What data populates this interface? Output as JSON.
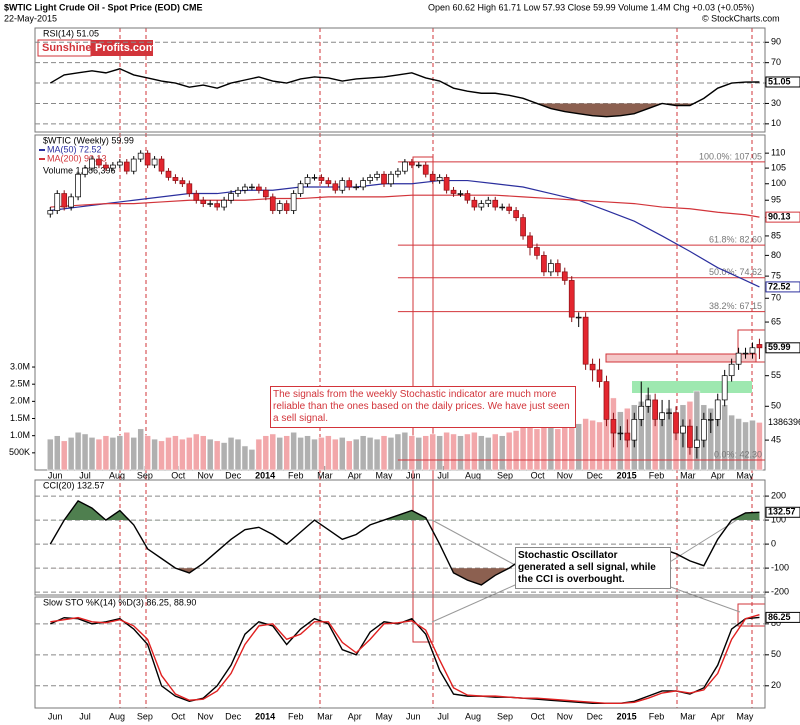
{
  "header": {
    "title": "$WTIC Light Crude Oil - Spot Price (EOD) CME",
    "date": "22-May-2015",
    "quote": "Open 60.62 High 61.71 Low 57.93 Close 59.99 Volume 1.4M Chg +0.03 (+0.05%)",
    "credit": "© StockCharts.com",
    "logo_1": "Sunshine",
    "logo_2": "Profits.com"
  },
  "annotations": {
    "signal_box": "The signals from the weekly Stochastic indicator are much more reliable than the ones based on the daily prices. We have just seen a sell signal.",
    "callout": "Stochastic Oscillator generated a sell signal, while the CCI is overbought."
  },
  "chart_data": [
    {
      "type": "line",
      "legend": "RSI(14) 51.05",
      "xlim": [
        -2.2,
        102.8
      ],
      "ylim": [
        2,
        104
      ],
      "yticks": [
        10,
        30,
        50,
        70,
        90
      ],
      "grid": true,
      "x": [
        0,
        2,
        4,
        6,
        8,
        10,
        12,
        14,
        16,
        18,
        20,
        22,
        24,
        26,
        28,
        30,
        32,
        34,
        36,
        38,
        40,
        42,
        44,
        46,
        48,
        50,
        52,
        54,
        56,
        58,
        60,
        62,
        64,
        66,
        68,
        70,
        72,
        74,
        76,
        78,
        80,
        82,
        84,
        86,
        88,
        90,
        92,
        94,
        96,
        98,
        100,
        102
      ],
      "series": [
        {
          "color": "#000000",
          "values": [
            50,
            58,
            60,
            62,
            60,
            64,
            58,
            55,
            52,
            50,
            46,
            48,
            45,
            50,
            53,
            56,
            52,
            50,
            54,
            56,
            55,
            52,
            54,
            55,
            56,
            58,
            60,
            55,
            52,
            45,
            42,
            40,
            40,
            38,
            35,
            30,
            25,
            22,
            20,
            18,
            17,
            18,
            20,
            25,
            30,
            28,
            28,
            35,
            45,
            50,
            51,
            51.05
          ],
          "last_label": "51.05"
        }
      ],
      "fills": [
        {
          "below": 30,
          "color": "#8c6050"
        }
      ]
    },
    {
      "type": "candlestick",
      "legend": "$WTIC (Weekly) 59.99",
      "log": true,
      "xlim": [
        -2.2,
        102.8
      ],
      "ylim": [
        41,
        116.4
      ],
      "yticks": [
        45,
        50,
        55,
        60,
        65,
        70,
        75,
        80,
        85,
        90,
        95,
        100,
        105,
        110
      ],
      "xticks": [
        {
          "value": 0.7,
          "label": "Jun"
        },
        {
          "value": 5,
          "label": "Jul"
        },
        {
          "value": 9.6,
          "label": "Aug"
        },
        {
          "value": 13.6,
          "label": "Sep"
        },
        {
          "value": 18.4,
          "label": "Oct"
        },
        {
          "value": 22.3,
          "label": "Nov"
        },
        {
          "value": 26.3,
          "label": "Dec"
        },
        {
          "value": 30.9,
          "label": "2014"
        },
        {
          "value": 35.3,
          "label": "Feb"
        },
        {
          "value": 39.5,
          "label": "Mar"
        },
        {
          "value": 43.8,
          "label": "Apr"
        },
        {
          "value": 48,
          "label": "May"
        },
        {
          "value": 52.2,
          "label": "Jun"
        },
        {
          "value": 56.5,
          "label": "Jul"
        },
        {
          "value": 60.8,
          "label": "Aug"
        },
        {
          "value": 65.4,
          "label": "Sep"
        },
        {
          "value": 70.1,
          "label": "Oct"
        },
        {
          "value": 74,
          "label": "Nov"
        },
        {
          "value": 78.3,
          "label": "Dec"
        },
        {
          "value": 82.9,
          "label": "2015"
        },
        {
          "value": 87.2,
          "label": "Feb"
        },
        {
          "value": 91.7,
          "label": "Mar"
        },
        {
          "value": 96,
          "label": "Apr"
        },
        {
          "value": 99.9,
          "label": "May"
        }
      ],
      "up_color": "#ffffff",
      "down_color": "#e3262f",
      "last_label": "59.99",
      "open": [
        91,
        92,
        97,
        93,
        96,
        103,
        105,
        108,
        106,
        105,
        106,
        107,
        104,
        108,
        110,
        106,
        108,
        104,
        102,
        101,
        100,
        97,
        95,
        94,
        94,
        93,
        95,
        97,
        98,
        99,
        99,
        98,
        96,
        92,
        94,
        92,
        97,
        100,
        102,
        102,
        101,
        100,
        98,
        101,
        99,
        99,
        101,
        102,
        103,
        100,
        103,
        104,
        107,
        106,
        106,
        103,
        101,
        102,
        98,
        97,
        97,
        95,
        93,
        94,
        95,
        93,
        93,
        92,
        90,
        85,
        82,
        80,
        76,
        78,
        76,
        74,
        66,
        66,
        57,
        56,
        54,
        48,
        46,
        46,
        45,
        48,
        50,
        51,
        48,
        49,
        49,
        46,
        47,
        44,
        45,
        48,
        48,
        51,
        55,
        57,
        59,
        59,
        60.62
      ],
      "high": [
        93,
        98,
        98,
        97,
        104,
        106,
        109,
        109,
        107,
        107,
        108,
        108,
        109,
        111,
        111,
        109,
        109,
        105,
        103,
        102,
        101,
        98,
        96,
        95,
        95,
        96,
        98,
        99,
        100,
        100,
        100,
        99,
        97,
        95,
        95,
        98,
        101,
        103,
        103,
        103,
        102,
        101,
        102,
        102,
        100,
        102,
        103,
        104,
        104,
        104,
        105,
        108,
        108,
        107,
        107,
        104,
        103,
        103,
        99,
        98,
        98,
        96,
        95,
        96,
        96,
        94,
        94,
        93,
        91,
        86,
        83,
        81,
        79,
        79,
        77,
        75,
        67,
        67,
        58,
        58,
        55,
        49,
        47,
        48,
        49,
        54,
        53,
        52,
        51,
        51,
        50,
        48,
        48,
        47,
        49,
        49,
        52,
        56,
        58,
        60,
        60,
        61,
        61.71
      ],
      "low": [
        90,
        91,
        92,
        92,
        95,
        102,
        104,
        105,
        104,
        104,
        105,
        103,
        103,
        107,
        105,
        105,
        103,
        101,
        100,
        99,
        96,
        94,
        93,
        93,
        92,
        92,
        94,
        96,
        97,
        98,
        97,
        95,
        91,
        91,
        91,
        91,
        96,
        99,
        101,
        100,
        99,
        97,
        97,
        98,
        98,
        98,
        100,
        101,
        99,
        99,
        102,
        103,
        105,
        105,
        102,
        100,
        100,
        97,
        96,
        96,
        94,
        92,
        92,
        93,
        92,
        92,
        91,
        89,
        84,
        80,
        79,
        75,
        75,
        75,
        73,
        65,
        64,
        56,
        54,
        53,
        47,
        44,
        45,
        44,
        44,
        47,
        49,
        47,
        47,
        48,
        45,
        44,
        43,
        42.5,
        44,
        46,
        47,
        50,
        54,
        56,
        58,
        58,
        57.93
      ],
      "close": [
        92,
        97,
        93,
        96,
        103,
        105,
        108,
        106,
        105,
        106,
        107,
        104,
        108,
        110,
        106,
        108,
        104,
        102,
        101,
        100,
        97,
        95,
        94,
        94,
        93,
        95,
        97,
        98,
        99,
        99,
        98,
        96,
        92,
        94,
        92,
        97,
        100,
        102,
        102,
        101,
        100,
        98,
        101,
        99,
        99,
        101,
        102,
        103,
        100,
        103,
        104,
        107,
        106,
        106,
        103,
        101,
        102,
        98,
        97,
        97,
        95,
        93,
        94,
        95,
        93,
        93,
        92,
        90,
        85,
        82,
        80,
        76,
        78,
        76,
        74,
        66,
        66,
        57,
        56,
        54,
        48,
        46,
        46,
        45,
        48,
        50,
        51,
        48,
        49,
        49,
        46,
        47,
        44,
        45,
        48,
        48,
        51,
        55,
        57,
        59,
        59,
        60,
        59.99
      ],
      "ma_x": [
        0,
        4,
        8,
        12,
        16,
        20,
        24,
        28,
        32,
        36,
        40,
        44,
        48,
        52,
        56,
        60,
        64,
        68,
        72,
        76,
        80,
        84,
        88,
        92,
        96,
        100,
        102
      ],
      "series": [
        {
          "name": "MA(50) 72.52",
          "color": "#2b2f9e",
          "values": [
            92,
            93,
            94,
            95,
            96,
            97,
            97,
            98,
            98,
            99,
            99,
            99,
            100,
            100,
            101,
            101,
            100,
            99,
            97,
            95,
            92,
            89,
            85,
            81,
            77,
            74,
            72.52
          ],
          "last_label": "72.52"
        },
        {
          "name": "MA(200) 90.13",
          "color": "#d2343a",
          "values": [
            93,
            93.5,
            94,
            94,
            94.5,
            95,
            95,
            95,
            95.5,
            95.5,
            96,
            96,
            96,
            96.5,
            96.5,
            96.5,
            96.5,
            96,
            95.5,
            95,
            94.5,
            94,
            93,
            92.5,
            91.5,
            90.8,
            90.13
          ],
          "last_label": "90.13"
        }
      ],
      "volume": {
        "name": "Volume 1,386,396",
        "ylim": [
          0,
          9760000
        ],
        "yticks": [
          {
            "value": 500000,
            "label": "500K"
          },
          {
            "value": 1000000,
            "label": "1.0M"
          },
          {
            "value": 1500000,
            "label": "1.5M"
          },
          {
            "value": 2000000,
            "label": "2.0M"
          },
          {
            "value": 2500000,
            "label": "2.5M"
          },
          {
            "value": 3000000,
            "label": "3.0M"
          }
        ],
        "up_color": "#b0b0b0",
        "down_color": "#f2a7aa",
        "last_label": "1386396",
        "values": [
          900000,
          1000000,
          850000,
          950000,
          1100000,
          1050000,
          950000,
          900000,
          1000000,
          950000,
          1000000,
          1100000,
          950000,
          1200000,
          1000000,
          900000,
          850000,
          950000,
          1000000,
          900000,
          950000,
          1050000,
          1000000,
          900000,
          850000,
          800000,
          950000,
          900000,
          700000,
          600000,
          900000,
          1000000,
          1050000,
          950000,
          1000000,
          1100000,
          950000,
          1000000,
          900000,
          950000,
          1000000,
          900000,
          950000,
          850000,
          900000,
          1000000,
          950000,
          900000,
          1000000,
          950000,
          1050000,
          1100000,
          1000000,
          950000,
          1000000,
          1050000,
          1000000,
          1100000,
          1050000,
          1000000,
          1050000,
          1100000,
          1000000,
          950000,
          1050000,
          1000000,
          1100000,
          1150000,
          1300000,
          1250000,
          1200000,
          1300000,
          1250000,
          1200000,
          1300000,
          1400000,
          1350000,
          1500000,
          1450000,
          1400000,
          1600000,
          2100000,
          1700000,
          1800000,
          1900000,
          2000000,
          2200000,
          1700000,
          1600000,
          1800000,
          1700000,
          1900000,
          2000000,
          2300000,
          1900000,
          1800000,
          1700000,
          1900000,
          1600000,
          1500000,
          1400000,
          1450000,
          1386396
        ]
      },
      "levels": [
        {
          "label": "100.0%: 107.05",
          "value": 107.05
        },
        {
          "label": "61.8%: 82.60",
          "value": 82.6
        },
        {
          "label": "50.0%: 74.62",
          "value": 74.62
        },
        {
          "label": "38.2%: 67.15",
          "value": 67.15
        },
        {
          "label": "0.0%: 42.30",
          "value": 42.3
        }
      ],
      "level_color": "#d2343a"
    },
    {
      "type": "line",
      "legend": "CCI(20) 132.57",
      "xlim": [
        -2.2,
        102.8
      ],
      "ylim": [
        -212,
        267
      ],
      "yticks": [
        -200,
        -100,
        0,
        100,
        200
      ],
      "grid": true,
      "x": [
        0,
        2,
        4,
        6,
        8,
        10,
        12,
        14,
        16,
        18,
        20,
        22,
        24,
        26,
        28,
        30,
        32,
        34,
        36,
        38,
        40,
        42,
        44,
        46,
        48,
        50,
        52,
        54,
        56,
        58,
        60,
        62,
        64,
        66,
        68,
        70,
        72,
        74,
        76,
        78,
        80,
        82,
        84,
        86,
        88,
        90,
        92,
        94,
        96,
        98,
        100,
        102
      ],
      "series": [
        {
          "color": "#000000",
          "values": [
            0,
            100,
            180,
            150,
            100,
            140,
            80,
            -20,
            -60,
            -100,
            -120,
            -80,
            -30,
            20,
            60,
            70,
            40,
            0,
            50,
            100,
            60,
            20,
            40,
            80,
            100,
            120,
            140,
            110,
            0,
            -120,
            -150,
            -170,
            -130,
            -100,
            -60,
            -40,
            -80,
            -120,
            -110,
            -120,
            -130,
            -100,
            -80,
            -40,
            -20,
            -40,
            -70,
            -90,
            20,
            100,
            130,
            132.57
          ],
          "last_label": "132.57"
        }
      ],
      "fills": [
        {
          "above": 100,
          "color": "#4f7f4f"
        },
        {
          "below": -100,
          "color": "#8c6050"
        }
      ]
    },
    {
      "type": "line",
      "legend": "Slow STO %K(14) %D(3) 86.25, 88.90",
      "xlim": [
        -2.2,
        102.8
      ],
      "ylim": [
        -1.5,
        106
      ],
      "yticks": [
        20,
        50,
        80
      ],
      "grid": true,
      "x": [
        0,
        2,
        4,
        6,
        8,
        10,
        12,
        14,
        16,
        18,
        20,
        22,
        24,
        26,
        28,
        30,
        32,
        34,
        36,
        38,
        40,
        42,
        44,
        46,
        48,
        50,
        52,
        54,
        56,
        58,
        60,
        62,
        64,
        66,
        68,
        70,
        72,
        74,
        76,
        78,
        80,
        82,
        84,
        86,
        88,
        90,
        92,
        94,
        96,
        98,
        100,
        102
      ],
      "series": [
        {
          "color": "#000000",
          "values": [
            80,
            86,
            85,
            80,
            82,
            85,
            75,
            60,
            20,
            10,
            5,
            8,
            20,
            40,
            70,
            82,
            78,
            60,
            75,
            85,
            80,
            55,
            50,
            72,
            82,
            80,
            85,
            70,
            35,
            12,
            10,
            10,
            9,
            9,
            8,
            7,
            6,
            5,
            4,
            3,
            3,
            3,
            5,
            10,
            15,
            15,
            12,
            18,
            40,
            75,
            85,
            86.25
          ],
          "last_label": "86.25"
        },
        {
          "color": "#e02020",
          "values": [
            82,
            84,
            86,
            82,
            81,
            84,
            78,
            65,
            30,
            12,
            6,
            7,
            15,
            32,
            60,
            78,
            80,
            65,
            70,
            82,
            82,
            62,
            52,
            65,
            80,
            81,
            83,
            74,
            45,
            18,
            11,
            10,
            10,
            9,
            8,
            8,
            7,
            6,
            5,
            4,
            3,
            3,
            4,
            8,
            13,
            15,
            13,
            16,
            32,
            65,
            85,
            88.9
          ]
        }
      ],
      "fills": []
    }
  ]
}
